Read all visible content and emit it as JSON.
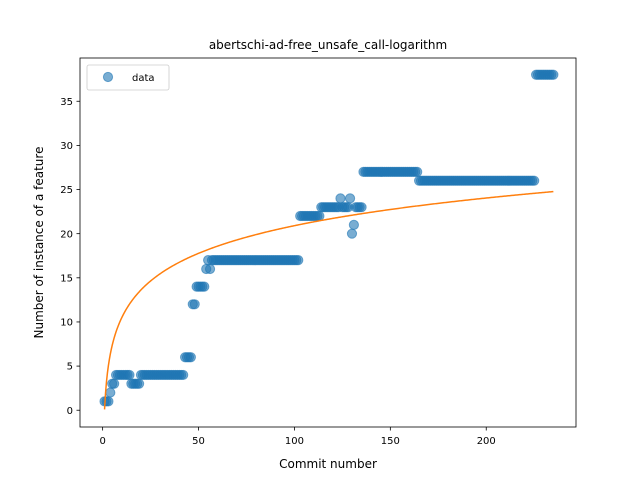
{
  "chart_data": {
    "type": "scatter",
    "title": "abertschi-ad-free_unsafe_call-logarithm",
    "xlabel": "Commit number",
    "ylabel": "Number of instance of a feature",
    "xlim": [
      -11.8,
      246.8
    ],
    "ylim": [
      -1.9,
      39.9
    ],
    "xticks": [
      0,
      50,
      100,
      150,
      200
    ],
    "yticks": [
      0,
      5,
      10,
      15,
      20,
      25,
      30,
      35
    ],
    "legend": {
      "placement": "upper-left",
      "entries": [
        "data"
      ]
    },
    "colors": {
      "data": "#1f77b4",
      "fit": "#ff7f0e"
    },
    "series": [
      {
        "name": "data",
        "kind": "scatter",
        "segments": [
          {
            "x_from": 1,
            "x_to": 3,
            "y": 1
          },
          {
            "x_from": 4,
            "x_to": 4,
            "y": 2
          },
          {
            "x_from": 5,
            "x_to": 6,
            "y": 3
          },
          {
            "x_from": 7,
            "x_to": 14,
            "y": 4
          },
          {
            "x_from": 15,
            "x_to": 19,
            "y": 3
          },
          {
            "x_from": 20,
            "x_to": 42,
            "y": 4
          },
          {
            "x_from": 43,
            "x_to": 46,
            "y": 6
          },
          {
            "x_from": 47,
            "x_to": 48,
            "y": 12
          },
          {
            "x_from": 49,
            "x_to": 53,
            "y": 14
          },
          {
            "x_from": 54,
            "x_to": 54,
            "y": 16
          },
          {
            "x_from": 55,
            "x_to": 55,
            "y": 17
          },
          {
            "x_from": 56,
            "x_to": 56,
            "y": 16
          },
          {
            "x_from": 57,
            "x_to": 102,
            "y": 17
          },
          {
            "x_from": 103,
            "x_to": 113,
            "y": 22
          },
          {
            "x_from": 114,
            "x_to": 123,
            "y": 23
          },
          {
            "x_from": 124,
            "x_to": 124,
            "y": 24
          },
          {
            "x_from": 125,
            "x_to": 128,
            "y": 23
          },
          {
            "x_from": 129,
            "x_to": 129,
            "y": 24
          },
          {
            "x_from": 130,
            "x_to": 130,
            "y": 20
          },
          {
            "x_from": 131,
            "x_to": 131,
            "y": 21
          },
          {
            "x_from": 132,
            "x_to": 135,
            "y": 23
          },
          {
            "x_from": 136,
            "x_to": 164,
            "y": 27
          },
          {
            "x_from": 165,
            "x_to": 225,
            "y": 26
          },
          {
            "x_from": 226,
            "x_to": 235,
            "y": 38
          }
        ]
      },
      {
        "name": "",
        "kind": "line",
        "model": "logarithmic",
        "a": 4.52,
        "b": 0.09,
        "x_range": [
          1,
          235
        ]
      }
    ]
  }
}
